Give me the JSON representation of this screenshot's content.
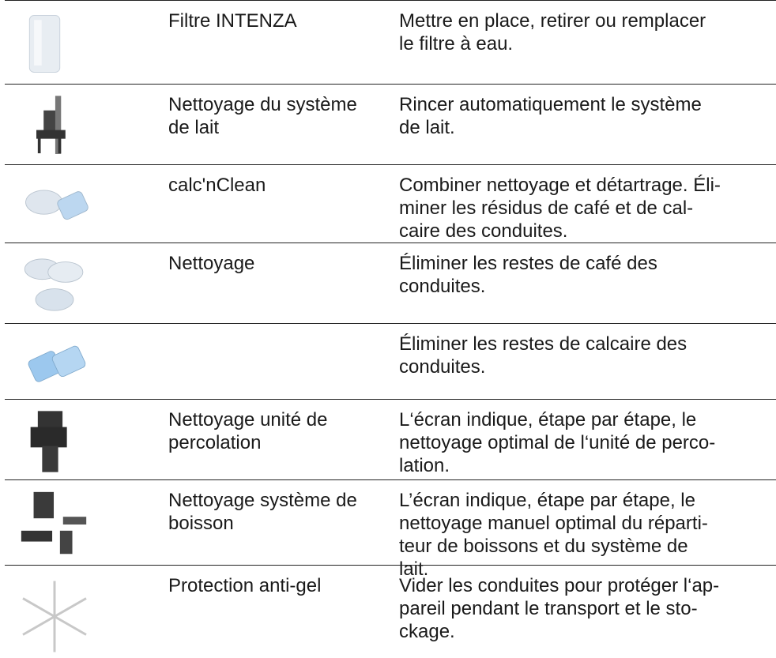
{
  "table": {
    "rows": [
      {
        "name": [
          "Filtre INTENZA"
        ],
        "description": [
          "Mettre en place, retirer ou remplacer",
          "le filtre à eau."
        ]
      },
      {
        "name": [
          "Nettoyage du système",
          "de lait"
        ],
        "description": [
          "Rincer automatiquement le système",
          "de lait."
        ]
      },
      {
        "name": [
          "calc'nClean"
        ],
        "description": [
          "Combiner nettoyage et détartrage. Éli-",
          "miner les résidus de café et de cal-",
          "caire des conduites."
        ]
      },
      {
        "name": [
          "Nettoyage"
        ],
        "description": [
          "Éliminer les restes de café des",
          "conduites."
        ]
      },
      {
        "description": [
          "Éliminer les restes de calcaire des",
          "conduites."
        ]
      },
      {
        "name": [
          "Nettoyage unité de",
          "percolation"
        ],
        "description": [
          "L‘écran indique, étape par étape, le",
          "nettoyage optimal de l‘unité de perco-",
          "lation."
        ]
      },
      {
        "name": [
          "Nettoyage système de",
          "boisson"
        ],
        "description": [
          "L’écran indique, étape par étape, le",
          "nettoyage manuel optimal du réparti-",
          "teur de boissons et du système de",
          "lait."
        ]
      },
      {
        "name": [
          "Protection anti-gel"
        ],
        "description": [
          "Vider les conduites pour protéger l‘ap-",
          "pareil pendant le transport et le sto-",
          "ckage."
        ]
      }
    ]
  }
}
